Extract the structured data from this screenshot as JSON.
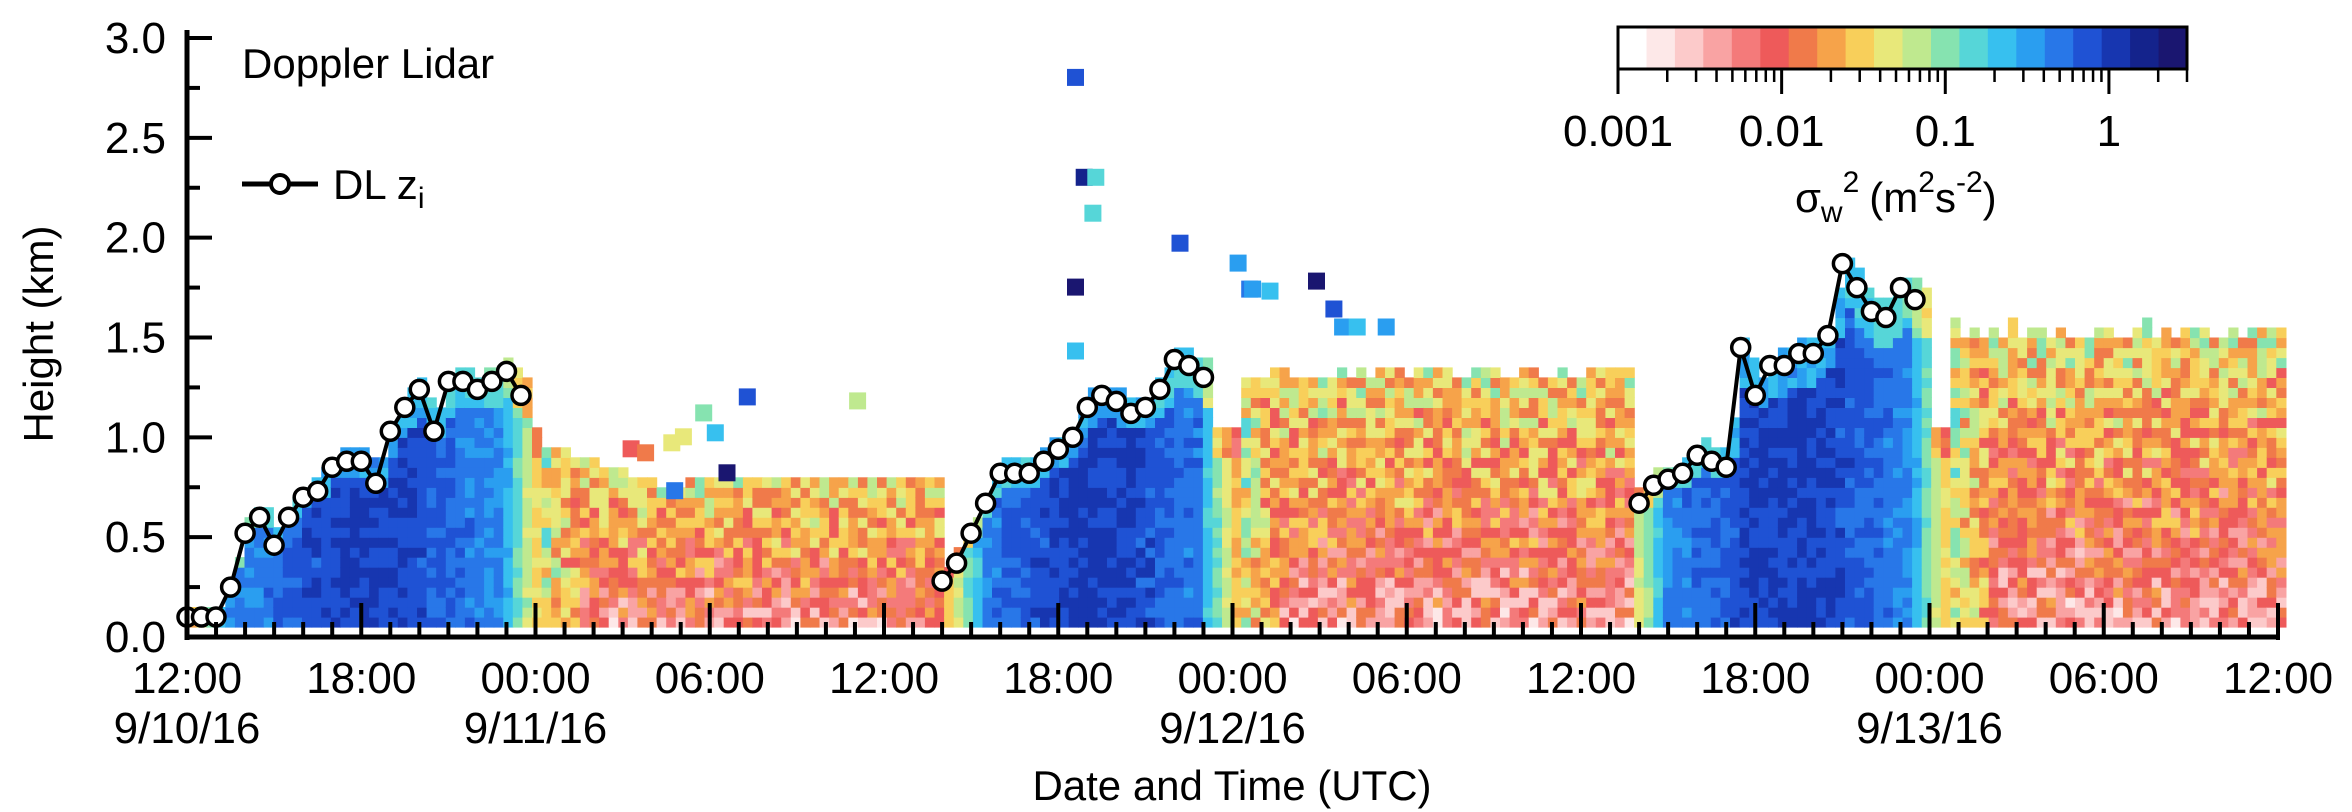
{
  "chart_data": {
    "type": "heatmap",
    "title": "",
    "xlabel": "Date and Time (UTC)",
    "ylabel": "Height (km)",
    "annotation": "Doppler Lidar",
    "xlim_hours": [
      0,
      72
    ],
    "ylim": [
      0.0,
      3.0
    ],
    "y_ticks": [
      "0.0",
      "0.5",
      "1.0",
      "1.5",
      "2.0",
      "2.5",
      "3.0"
    ],
    "x_ticks": [
      {
        "hour": 0,
        "time": "12:00",
        "date": "9/10/16"
      },
      {
        "hour": 6,
        "time": "18:00",
        "date": ""
      },
      {
        "hour": 12,
        "time": "00:00",
        "date": "9/11/16"
      },
      {
        "hour": 18,
        "time": "06:00",
        "date": ""
      },
      {
        "hour": 24,
        "time": "12:00",
        "date": ""
      },
      {
        "hour": 30,
        "time": "18:00",
        "date": ""
      },
      {
        "hour": 36,
        "time": "00:00",
        "date": "9/12/16"
      },
      {
        "hour": 42,
        "time": "06:00",
        "date": ""
      },
      {
        "hour": 48,
        "time": "12:00",
        "date": ""
      },
      {
        "hour": 54,
        "time": "18:00",
        "date": ""
      },
      {
        "hour": 60,
        "time": "00:00",
        "date": "9/13/16"
      },
      {
        "hour": 66,
        "time": "06:00",
        "date": ""
      },
      {
        "hour": 72,
        "time": "12:00",
        "date": ""
      }
    ],
    "colorbar": {
      "scale": "log",
      "range": [
        0.001,
        3.0
      ],
      "tick_values": [
        0.001,
        0.01,
        0.1,
        1
      ],
      "tick_labels": [
        "0.001",
        "0.01",
        "0.1",
        "1"
      ],
      "label_main": "σ",
      "label_sub": "w",
      "label_sup": "2",
      "label_units_pre": "(m",
      "label_units_sup1": "2",
      "label_units_mid": "s",
      "label_units_sup2": "-2",
      "label_units_post": ")",
      "colors": [
        "#ffffff",
        "#fde8e8",
        "#fccaca",
        "#f9a3a3",
        "#f47a7a",
        "#ee5a5a",
        "#f07a4a",
        "#f6a34a",
        "#f8cf5a",
        "#e8e87a",
        "#bfe98f",
        "#86e3b0",
        "#56d6d8",
        "#37c0ef",
        "#2a9ef0",
        "#2877e8",
        "#1f52d4",
        "#1736b0",
        "#14238c",
        "#1a1670"
      ]
    },
    "series": [
      {
        "name_main": "DL z",
        "name_sub": "i",
        "points": [
          [
            0.0,
            0.1
          ],
          [
            0.5,
            0.1
          ],
          [
            1.0,
            0.1
          ],
          [
            1.5,
            0.25
          ],
          [
            2.0,
            0.52
          ],
          [
            2.5,
            0.6
          ],
          [
            3.0,
            0.46
          ],
          [
            3.5,
            0.6
          ],
          [
            4.0,
            0.7
          ],
          [
            4.5,
            0.73
          ],
          [
            5.0,
            0.85
          ],
          [
            5.5,
            0.88
          ],
          [
            6.0,
            0.88
          ],
          [
            6.5,
            0.77
          ],
          [
            7.0,
            1.03
          ],
          [
            7.5,
            1.15
          ],
          [
            8.0,
            1.24
          ],
          [
            8.5,
            1.03
          ],
          [
            9.0,
            1.28
          ],
          [
            9.5,
            1.28
          ],
          [
            10.0,
            1.24
          ],
          [
            10.5,
            1.28
          ],
          [
            11.0,
            1.33
          ],
          [
            11.5,
            1.21
          ],
          null,
          [
            26.0,
            0.28
          ],
          [
            26.5,
            0.37
          ],
          [
            27.0,
            0.52
          ],
          [
            27.5,
            0.67
          ],
          [
            28.0,
            0.82
          ],
          [
            28.5,
            0.82
          ],
          [
            29.0,
            0.82
          ],
          [
            29.5,
            0.88
          ],
          [
            30.0,
            0.94
          ],
          [
            30.5,
            1.0
          ],
          [
            31.0,
            1.15
          ],
          [
            31.5,
            1.21
          ],
          [
            32.0,
            1.18
          ],
          [
            32.5,
            1.12
          ],
          [
            33.0,
            1.15
          ],
          [
            33.5,
            1.24
          ],
          [
            34.0,
            1.39
          ],
          [
            34.5,
            1.36
          ],
          [
            35.0,
            1.3
          ],
          null,
          [
            50.0,
            0.67
          ],
          [
            50.5,
            0.76
          ],
          [
            51.0,
            0.79
          ],
          [
            51.5,
            0.82
          ],
          [
            52.0,
            0.91
          ],
          [
            52.5,
            0.88
          ],
          [
            53.0,
            0.85
          ],
          [
            53.5,
            1.45
          ],
          [
            54.0,
            1.21
          ],
          [
            54.5,
            1.36
          ],
          [
            55.0,
            1.36
          ],
          [
            55.5,
            1.42
          ],
          [
            56.0,
            1.42
          ],
          [
            56.5,
            1.51
          ],
          [
            57.0,
            1.87
          ],
          [
            57.5,
            1.75
          ],
          [
            58.0,
            1.63
          ],
          [
            58.5,
            1.6
          ],
          [
            59.0,
            1.75
          ],
          [
            59.5,
            1.69
          ]
        ]
      }
    ],
    "field_model": {
      "x_step_hours": 0.33,
      "y_step_km": 0.05,
      "note_units": "log10 variance",
      "segments": [
        {
          "start": 0,
          "end": 12,
          "kind": "day"
        },
        {
          "start": 12,
          "end": 26,
          "kind": "night"
        },
        {
          "start": 26,
          "end": 36,
          "kind": "day"
        },
        {
          "start": 36,
          "end": 49.5,
          "kind": "night"
        },
        {
          "start": 49.5,
          "end": 60.5,
          "kind": "day"
        },
        {
          "start": 60.5,
          "end": 72,
          "kind": "night"
        }
      ]
    },
    "scattered_cells": [
      [
        30.3,
        2.8,
        0.8
      ],
      [
        30.6,
        2.3,
        2.0
      ],
      [
        31.0,
        2.3,
        0.15
      ],
      [
        30.9,
        2.12,
        0.18
      ],
      [
        30.3,
        1.75,
        2.5
      ],
      [
        30.3,
        1.43,
        0.2
      ],
      [
        33.9,
        1.97,
        0.8
      ],
      [
        35.9,
        1.87,
        0.3
      ],
      [
        36.3,
        1.74,
        0.6
      ],
      [
        36.4,
        1.74,
        0.3
      ],
      [
        37.0,
        1.73,
        0.2
      ],
      [
        38.6,
        1.78,
        2.5
      ],
      [
        39.2,
        1.64,
        0.8
      ],
      [
        39.5,
        1.55,
        0.3
      ],
      [
        40.0,
        1.55,
        0.2
      ],
      [
        41.0,
        1.55,
        0.3
      ],
      [
        17.5,
        1.12,
        0.12
      ],
      [
        17.9,
        1.02,
        0.2
      ],
      [
        19.0,
        1.2,
        0.8
      ],
      [
        22.8,
        1.18,
        0.08
      ],
      [
        16.8,
        1.0,
        0.05
      ],
      [
        16.4,
        0.97,
        0.05
      ],
      [
        15.0,
        0.94,
        0.01
      ],
      [
        15.5,
        0.92,
        0.012
      ],
      [
        18.3,
        0.82,
        2.5
      ],
      [
        16.5,
        0.73,
        0.5
      ]
    ]
  }
}
